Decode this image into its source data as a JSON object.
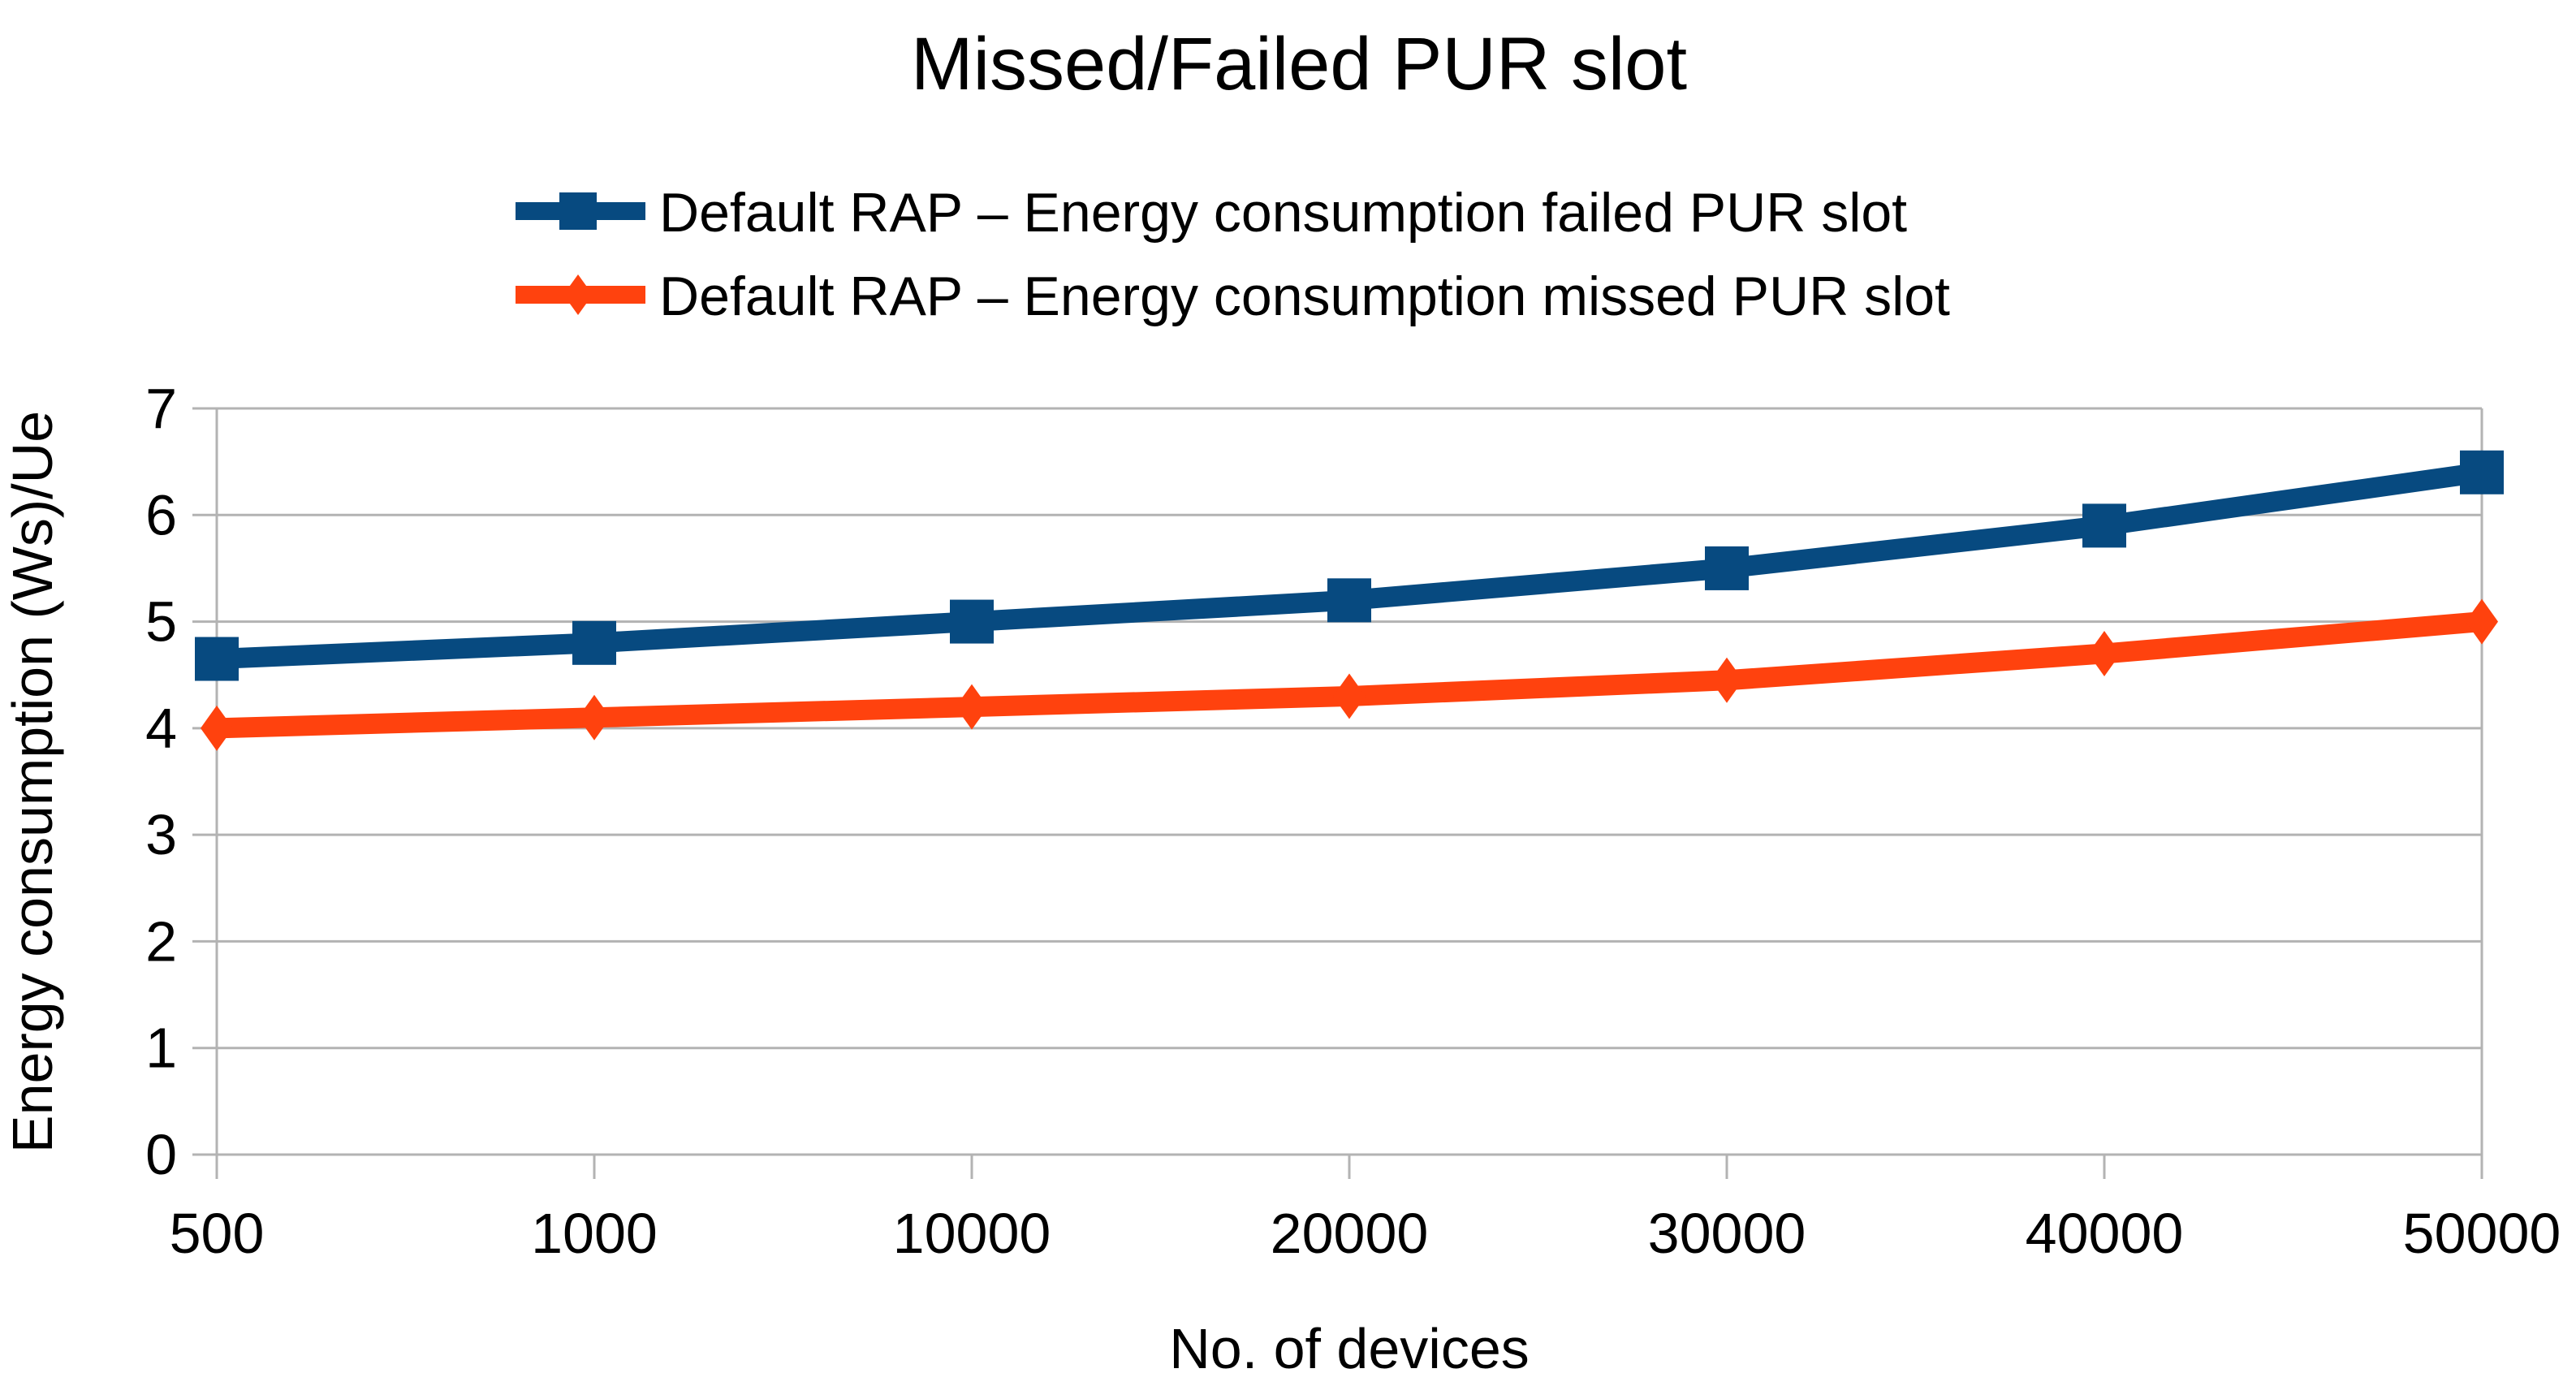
{
  "chart_title": "Missed/Failed PUR slot",
  "chart_data": {
    "type": "line",
    "title": "Missed/Failed PUR slot",
    "xlabel": "No. of devices",
    "ylabel": "Energy consumption (Ws)/Ue",
    "categories": [
      "500",
      "1000",
      "10000",
      "20000",
      "30000",
      "40000",
      "50000"
    ],
    "series": [
      {
        "name": "Default RAP – Energy consumption failed PUR slot",
        "marker": "square",
        "color": "#074A80",
        "values": [
          4.65,
          4.8,
          5.0,
          5.2,
          5.5,
          5.9,
          6.4
        ]
      },
      {
        "name": "Default RAP – Energy consumption missed PUR slot",
        "marker": "diamond",
        "color": "#FF420E",
        "values": [
          4.0,
          4.1,
          4.2,
          4.3,
          4.45,
          4.7,
          5.0
        ]
      }
    ],
    "ylim": [
      0,
      7
    ],
    "yticks": [
      "0",
      "1",
      "2",
      "3",
      "4",
      "5",
      "6",
      "7"
    ],
    "grid": "horizontal-only",
    "gridline_color": "#B3B3B3",
    "text_color": "#000000",
    "background_color": "#FFFFFF",
    "legend_position": "top-center"
  }
}
